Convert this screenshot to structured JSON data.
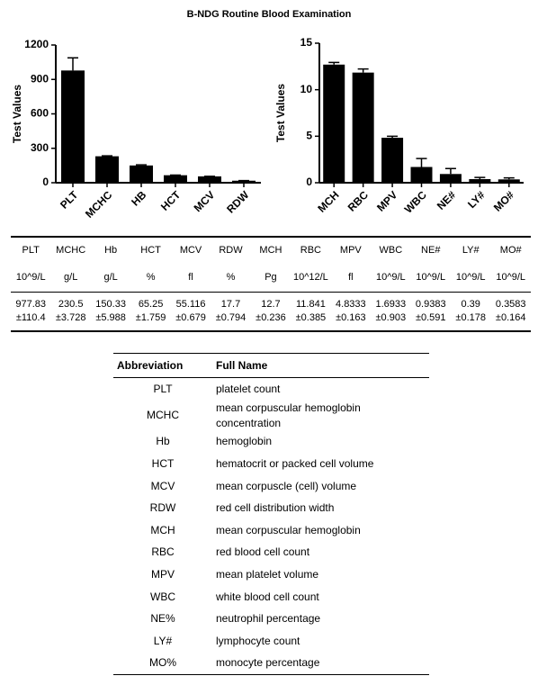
{
  "title": "B-NDG Routine Blood Examination",
  "chart_data": [
    {
      "type": "bar",
      "ylabel": "Test Values",
      "categories": [
        "PLT",
        "MCHC",
        "HB",
        "HCT",
        "MCV",
        "RDW"
      ],
      "values": [
        977.83,
        230.5,
        150.33,
        65.25,
        55.116,
        17.7
      ],
      "errors": [
        110.4,
        3.728,
        5.988,
        1.759,
        0.679,
        0.794
      ],
      "color": "#000000",
      "ylim": [
        0,
        1200
      ],
      "yticks": [
        0,
        300,
        600,
        900,
        1200
      ],
      "grid": false
    },
    {
      "type": "bar",
      "ylabel": "Test Values",
      "categories": [
        "MCH",
        "RBC",
        "MPV",
        "WBC",
        "NE#",
        "LY#",
        "MO#"
      ],
      "values": [
        12.7,
        11.841,
        4.8333,
        1.6933,
        0.9383,
        0.39,
        0.3583
      ],
      "errors": [
        0.236,
        0.385,
        0.163,
        0.903,
        0.591,
        0.178,
        0.164
      ],
      "color": "#000000",
      "ylim": [
        0,
        15
      ],
      "yticks": [
        0,
        5,
        10,
        15
      ],
      "grid": false
    }
  ],
  "measurements": {
    "header": [
      "PLT",
      "MCHC",
      "Hb",
      "HCT",
      "MCV",
      "RDW",
      "MCH",
      "RBC",
      "MPV",
      "WBC",
      "NE#",
      "LY#",
      "MO#"
    ],
    "units": [
      "10^9/L",
      "g/L",
      "g/L",
      "%",
      "fl",
      "%",
      "Pg",
      "10^12/L",
      "fl",
      "10^9/L",
      "10^9/L",
      "10^9/L",
      "10^9/L"
    ],
    "means": [
      "977.83",
      "230.5",
      "150.33",
      "65.25",
      "55.116",
      "17.7",
      "12.7",
      "11.841",
      "4.8333",
      "1.6933",
      "0.9383",
      "0.39",
      "0.3583"
    ],
    "sds": [
      "±110.4",
      "±3.728",
      "±5.988",
      "±1.759",
      "±0.679",
      "±0.794",
      "±0.236",
      "±0.385",
      "±0.163",
      "±0.903",
      "±0.591",
      "±0.178",
      "±0.164"
    ]
  },
  "abbreviations": {
    "header": [
      "Abbreviation",
      "Full Name"
    ],
    "rows": [
      [
        "PLT",
        "platelet count"
      ],
      [
        "MCHC",
        "mean corpuscular hemoglobin concentration"
      ],
      [
        "Hb",
        "hemoglobin"
      ],
      [
        "HCT",
        "hematocrit or packed cell volume"
      ],
      [
        "MCV",
        "mean corpuscle (cell) volume"
      ],
      [
        "RDW",
        "red cell distribution width"
      ],
      [
        "MCH",
        "mean corpuscular hemoglobin"
      ],
      [
        "RBC",
        "red blood cell count"
      ],
      [
        "MPV",
        "mean platelet volume"
      ],
      [
        "WBC",
        "white blood cell count"
      ],
      [
        "NE%",
        "neutrophil percentage"
      ],
      [
        "LY#",
        "lymphocyte count"
      ],
      [
        "MO%",
        "monocyte percentage"
      ]
    ]
  }
}
